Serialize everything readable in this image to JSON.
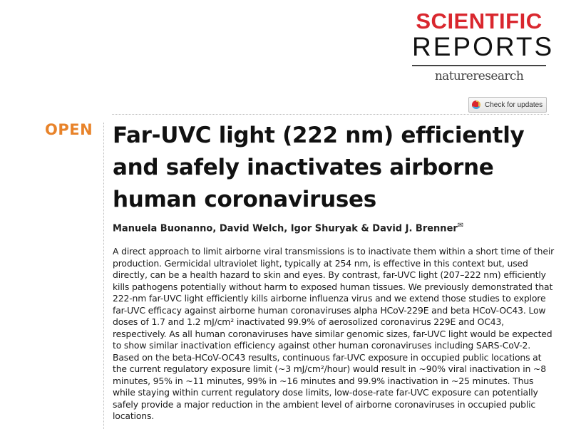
{
  "journal": {
    "name_line1": "SCIENTIFIC",
    "name_line2": "REPORTS",
    "publisher": "natureresearch",
    "brand_color": "#d9272e"
  },
  "check_updates": {
    "label": "Check for updates",
    "icon": "crossmark-icon"
  },
  "access": {
    "label": "OPEN",
    "color": "#e8832a"
  },
  "article": {
    "title": "Far-UVC light (222 nm) efficiently and safely inactivates airborne human coronaviruses",
    "authors": "Manuela Buonanno, David Welch, Igor Shuryak & David J. Brenner",
    "correspondence_icon": "envelope-icon",
    "abstract": "A direct approach to limit airborne viral transmissions is to inactivate them within a short time of their production. Germicidal ultraviolet light, typically at 254 nm, is effective in this context but, used directly, can be a health hazard to skin and eyes. By contrast, far-UVC light (207–222 nm) efficiently kills pathogens potentially without harm to exposed human tissues. We previously demonstrated that 222-nm far-UVC light efficiently kills airborne influenza virus and we extend those studies to explore far-UVC efficacy against airborne human coronaviruses alpha HCoV-229E and beta HCoV-OC43. Low doses of 1.7 and 1.2 mJ/cm² inactivated 99.9% of aerosolized coronavirus 229E and OC43, respectively. As all human coronaviruses have similar genomic sizes, far-UVC light would be expected to show similar inactivation efficiency against other human coronaviruses including SARS-CoV-2. Based on the beta-HCoV-OC43 results, continuous far-UVC exposure in occupied public locations at the current regulatory exposure limit (~3 mJ/cm²/hour) would result in ~90% viral inactivation in ~8 minutes, 95% in ~11 minutes, 99% in ~16 minutes and 99.9% inactivation in ~25 minutes. Thus while staying within current regulatory dose limits, low-dose-rate far-UVC exposure can potentially safely provide a major reduction in the ambient level of airborne coronaviruses in occupied public locations."
  }
}
